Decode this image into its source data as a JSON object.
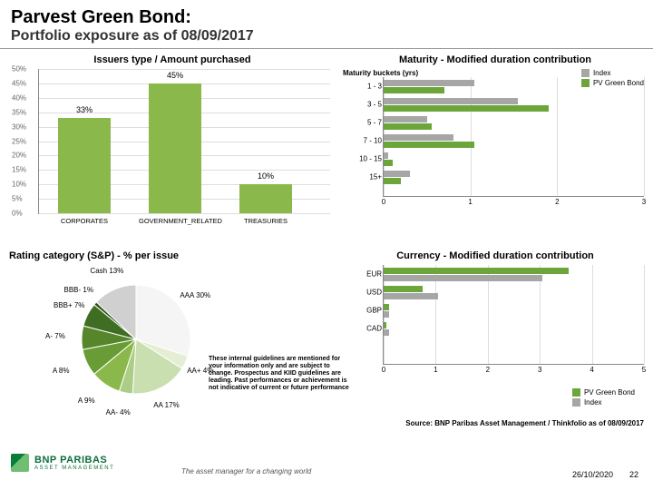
{
  "header": {
    "title": "Parvest Green Bond:",
    "subtitle": "Portfolio exposure as of 08/09/2017"
  },
  "colors": {
    "bar_green": "#8bb84a",
    "index_gray": "#a6a6a6",
    "pv_green": "#6ca63a",
    "grid": "#dddddd",
    "axis": "#888888"
  },
  "bar_chart": {
    "title": "Issuers type / Amount purchased",
    "ylim": [
      0,
      50
    ],
    "ytick_step": 5,
    "categories": [
      "CORPORATES",
      "GOVERNMENT_RELATED",
      "TREASURIES"
    ],
    "values": [
      33,
      45,
      10
    ],
    "value_labels": [
      "33%",
      "45%",
      "10%"
    ],
    "bar_color": "#8bb84a"
  },
  "maturity_chart": {
    "title": "Maturity - Modified duration contribution",
    "subtitle": "Maturity buckets (yrs)",
    "xlim": [
      0,
      3
    ],
    "xtick_step": 1,
    "categories": [
      "1 - 3",
      "3 - 5",
      "5 - 7",
      "7 - 10",
      "10 - 15",
      "15+"
    ],
    "index": [
      1.05,
      1.55,
      0.5,
      0.8,
      0.05,
      0.3
    ],
    "pv": [
      0.7,
      1.9,
      0.55,
      1.05,
      0.1,
      0.2
    ],
    "legend": {
      "s1": "Index",
      "s2": "PV Green Bond"
    },
    "colors": {
      "index": "#a6a6a6",
      "pv": "#6ca63a"
    }
  },
  "currency_chart": {
    "title": "Currency - Modified duration contribution",
    "xlim": [
      0,
      5
    ],
    "xtick_step": 1,
    "categories": [
      "EUR",
      "USD",
      "GBP",
      "CAD"
    ],
    "index": [
      3.05,
      1.05,
      0.1,
      0.1
    ],
    "pv": [
      3.55,
      0.75,
      0.1,
      0.05
    ],
    "legend": {
      "s1": "PV Green Bond",
      "s2": "Index"
    },
    "colors": {
      "index": "#a6a6a6",
      "pv": "#6ca63a"
    }
  },
  "pie_chart": {
    "title": "Rating category (S&P) - % per issue",
    "slices": [
      {
        "label": "AAA 30%",
        "value": 30,
        "color": "#f5f5f5"
      },
      {
        "label": "AA+ 4%",
        "value": 4,
        "color": "#e4eed3"
      },
      {
        "label": "AA 17%",
        "value": 17,
        "color": "#c9dfaf"
      },
      {
        "label": "AA- 4%",
        "value": 4,
        "color": "#accd86"
      },
      {
        "label": "A 9%",
        "value": 9,
        "color": "#8bb84a"
      },
      {
        "label": "A 8%",
        "value": 8,
        "color": "#6a9c36"
      },
      {
        "label": "A- 7%",
        "value": 7,
        "color": "#56862c"
      },
      {
        "label": "BBB+ 7%",
        "value": 7,
        "color": "#3f6e22"
      },
      {
        "label": "BBB- 1%",
        "value": 1,
        "color": "#2b5416"
      },
      {
        "label": "Cash 13%",
        "value": 13,
        "color": "#d0d0d0"
      }
    ]
  },
  "disclaimer": "These internal guidelines are mentioned for your information only and are subject to change. Prospectus and KIID guidelines are leading. Past performances or achievement is not indicative of current or future performance",
  "source": "Source: BNP Paribas Asset Management / Thinkfolio as of 08/09/2017",
  "footer": {
    "logo_line1": "BNP PARIBAS",
    "logo_line2": "ASSET MANAGEMENT",
    "tagline": "The asset manager for a changing world",
    "date": "26/10/2020",
    "page": "22"
  }
}
